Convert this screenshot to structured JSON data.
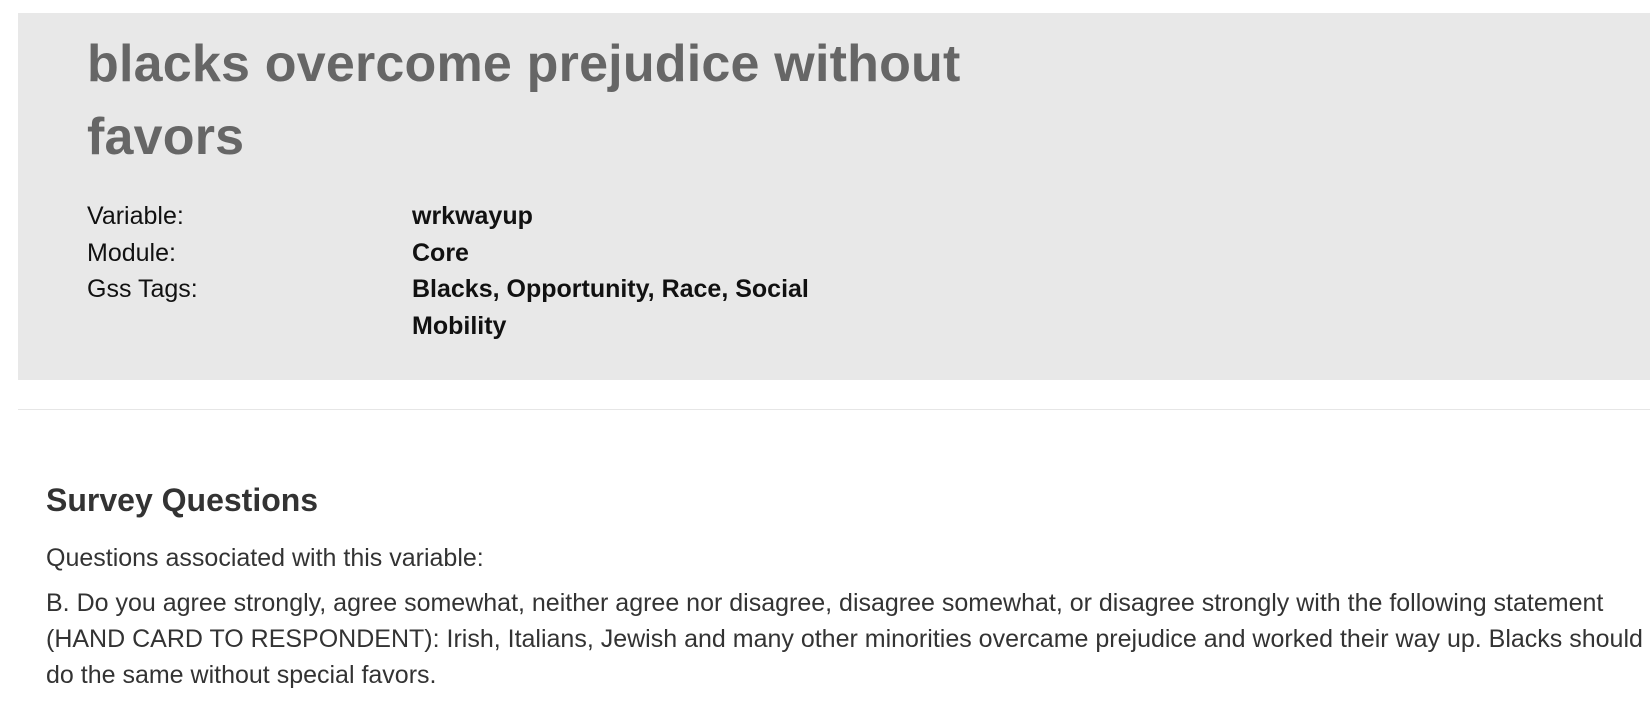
{
  "header": {
    "title": "blacks overcome prejudice without favors",
    "meta": [
      {
        "label": "Variable:",
        "value": "wrkwayup"
      },
      {
        "label": "Module:",
        "value": "Core"
      },
      {
        "label": "Gss Tags:",
        "value": "Blacks, Opportunity, Race, Social Mobility"
      }
    ]
  },
  "survey": {
    "section_title": "Survey Questions",
    "intro": "Questions associated with this variable:",
    "question": "B. Do you agree strongly, agree somewhat, neither agree nor disagree, disagree somewhat, or disagree strongly with the following statement (HAND CARD TO RESPONDENT): Irish, Italians, Jewish and many other minorities overcame prejudice and worked their way up. Blacks should do the same without special favors."
  },
  "colors": {
    "header_bg": "#e8e8e8",
    "title_text": "#666666",
    "body_text": "#333333"
  }
}
